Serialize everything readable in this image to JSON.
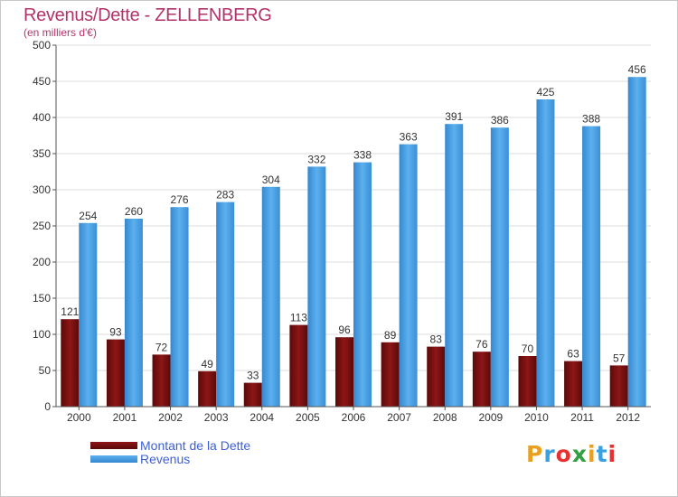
{
  "header": {
    "title": "Revenus/Dette - ZELLENBERG",
    "subtitle": "(en milliers d'€)"
  },
  "chart_data": {
    "type": "bar",
    "categories": [
      "2000",
      "2001",
      "2002",
      "2003",
      "2004",
      "2005",
      "2006",
      "2007",
      "2008",
      "2009",
      "2010",
      "2011",
      "2012"
    ],
    "series": [
      {
        "name": "Montant de la Dette",
        "values": [
          121,
          93,
          72,
          49,
          33,
          113,
          96,
          89,
          83,
          76,
          70,
          63,
          57
        ],
        "color": "#7a0e0e"
      },
      {
        "name": "Revenus",
        "values": [
          254,
          260,
          276,
          283,
          304,
          332,
          338,
          363,
          391,
          386,
          425,
          388,
          456
        ],
        "color": "#4ea3e6"
      }
    ],
    "ylim": [
      0,
      500
    ],
    "yticks": [
      0,
      50,
      100,
      150,
      200,
      250,
      300,
      350,
      400,
      450,
      500
    ],
    "grid": true,
    "legend": "bottom-left"
  },
  "logo": {
    "letters": [
      "P",
      "r",
      "o",
      "x",
      "i",
      "t",
      "i"
    ],
    "colors": [
      "#e8a020",
      "#3aa0e0",
      "#e83030",
      "#30a040",
      "#e8a020",
      "#3aa0e0",
      "#e83030"
    ]
  }
}
